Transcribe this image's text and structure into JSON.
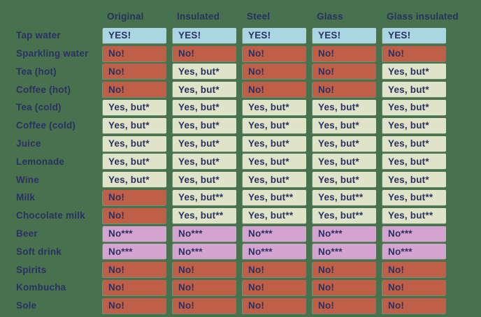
{
  "colors": {
    "background": "#48714e",
    "text_navy": "#2a3162",
    "cell_yes_blue": "#a9d6e0",
    "cell_no_red": "#c05f48",
    "cell_yes_but_cream": "#dfe3c8",
    "cell_no_starred_pink": "#d5a3cf"
  },
  "chart_data": {
    "type": "table",
    "title": "",
    "legend_position": "none",
    "columns": [
      "Original",
      "Insulated",
      "Steel",
      "Glass",
      "Glass insulated"
    ],
    "rows": [
      {
        "label": "Tap water",
        "cells": [
          {
            "text": "YES!",
            "type": "yes"
          },
          {
            "text": "YES!",
            "type": "yes"
          },
          {
            "text": "YES!",
            "type": "yes"
          },
          {
            "text": "YES!",
            "type": "yes"
          },
          {
            "text": "YES!",
            "type": "yes"
          }
        ]
      },
      {
        "label": "Sparkling water",
        "cells": [
          {
            "text": "No!",
            "type": "no"
          },
          {
            "text": "No!",
            "type": "no"
          },
          {
            "text": "No!",
            "type": "no"
          },
          {
            "text": "No!",
            "type": "no"
          },
          {
            "text": "No!",
            "type": "no"
          }
        ]
      },
      {
        "label": "Tea (hot)",
        "cells": [
          {
            "text": "No!",
            "type": "no"
          },
          {
            "text": "Yes, but*",
            "type": "yes_but"
          },
          {
            "text": "No!",
            "type": "no"
          },
          {
            "text": "No!",
            "type": "no"
          },
          {
            "text": "Yes, but*",
            "type": "yes_but"
          }
        ]
      },
      {
        "label": "Coffee (hot)",
        "cells": [
          {
            "text": "No!",
            "type": "no"
          },
          {
            "text": "Yes, but*",
            "type": "yes_but"
          },
          {
            "text": "No!",
            "type": "no"
          },
          {
            "text": "No!",
            "type": "no"
          },
          {
            "text": "Yes, but*",
            "type": "yes_but"
          }
        ]
      },
      {
        "label": "Tea (cold)",
        "cells": [
          {
            "text": "Yes, but*",
            "type": "yes_but"
          },
          {
            "text": "Yes, but*",
            "type": "yes_but"
          },
          {
            "text": "Yes, but*",
            "type": "yes_but"
          },
          {
            "text": "Yes, but*",
            "type": "yes_but"
          },
          {
            "text": "Yes, but*",
            "type": "yes_but"
          }
        ]
      },
      {
        "label": "Coffee (cold)",
        "cells": [
          {
            "text": "Yes, but*",
            "type": "yes_but"
          },
          {
            "text": "Yes, but*",
            "type": "yes_but"
          },
          {
            "text": "Yes, but*",
            "type": "yes_but"
          },
          {
            "text": "Yes, but*",
            "type": "yes_but"
          },
          {
            "text": "Yes, but*",
            "type": "yes_but"
          }
        ]
      },
      {
        "label": "Juice",
        "cells": [
          {
            "text": "Yes, but*",
            "type": "yes_but"
          },
          {
            "text": "Yes, but*",
            "type": "yes_but"
          },
          {
            "text": "Yes, but*",
            "type": "yes_but"
          },
          {
            "text": "Yes, but*",
            "type": "yes_but"
          },
          {
            "text": "Yes, but*",
            "type": "yes_but"
          }
        ]
      },
      {
        "label": "Lemonade",
        "cells": [
          {
            "text": "Yes, but*",
            "type": "yes_but"
          },
          {
            "text": "Yes, but*",
            "type": "yes_but"
          },
          {
            "text": "Yes, but*",
            "type": "yes_but"
          },
          {
            "text": "Yes, but*",
            "type": "yes_but"
          },
          {
            "text": "Yes, but*",
            "type": "yes_but"
          }
        ]
      },
      {
        "label": "Wine",
        "cells": [
          {
            "text": "Yes, but*",
            "type": "yes_but"
          },
          {
            "text": "Yes, but*",
            "type": "yes_but"
          },
          {
            "text": "Yes, but*",
            "type": "yes_but"
          },
          {
            "text": "Yes, but*",
            "type": "yes_but"
          },
          {
            "text": "Yes, but*",
            "type": "yes_but"
          }
        ]
      },
      {
        "label": "Milk",
        "cells": [
          {
            "text": "No!",
            "type": "no"
          },
          {
            "text": "Yes, but**",
            "type": "yes_but"
          },
          {
            "text": "Yes, but**",
            "type": "yes_but"
          },
          {
            "text": "Yes, but**",
            "type": "yes_but"
          },
          {
            "text": "Yes, but**",
            "type": "yes_but"
          }
        ]
      },
      {
        "label": "Chocolate milk",
        "cells": [
          {
            "text": "No!",
            "type": "no"
          },
          {
            "text": "Yes, but**",
            "type": "yes_but"
          },
          {
            "text": "Yes, but**",
            "type": "yes_but"
          },
          {
            "text": "Yes, but**",
            "type": "yes_but"
          },
          {
            "text": "Yes, but**",
            "type": "yes_but"
          }
        ]
      },
      {
        "label": "Beer",
        "cells": [
          {
            "text": "No***",
            "type": "no_starred"
          },
          {
            "text": "No***",
            "type": "no_starred"
          },
          {
            "text": "No***",
            "type": "no_starred"
          },
          {
            "text": "No***",
            "type": "no_starred"
          },
          {
            "text": "No***",
            "type": "no_starred"
          }
        ]
      },
      {
        "label": "Soft drink",
        "cells": [
          {
            "text": "No***",
            "type": "no_starred"
          },
          {
            "text": "No***",
            "type": "no_starred"
          },
          {
            "text": "No***",
            "type": "no_starred"
          },
          {
            "text": "No***",
            "type": "no_starred"
          },
          {
            "text": "No***",
            "type": "no_starred"
          }
        ]
      },
      {
        "label": "Spirits",
        "cells": [
          {
            "text": "No!",
            "type": "no"
          },
          {
            "text": "No!",
            "type": "no"
          },
          {
            "text": "No!",
            "type": "no"
          },
          {
            "text": "No!",
            "type": "no"
          },
          {
            "text": "No!",
            "type": "no"
          }
        ]
      },
      {
        "label": "Kombucha",
        "cells": [
          {
            "text": "No!",
            "type": "no"
          },
          {
            "text": "No!",
            "type": "no"
          },
          {
            "text": "No!",
            "type": "no"
          },
          {
            "text": "No!",
            "type": "no"
          },
          {
            "text": "No!",
            "type": "no"
          }
        ]
      },
      {
        "label": "Sole",
        "cells": [
          {
            "text": "No!",
            "type": "no"
          },
          {
            "text": "No!",
            "type": "no"
          },
          {
            "text": "No!",
            "type": "no"
          },
          {
            "text": "No!",
            "type": "no"
          },
          {
            "text": "No!",
            "type": "no"
          }
        ]
      }
    ]
  }
}
